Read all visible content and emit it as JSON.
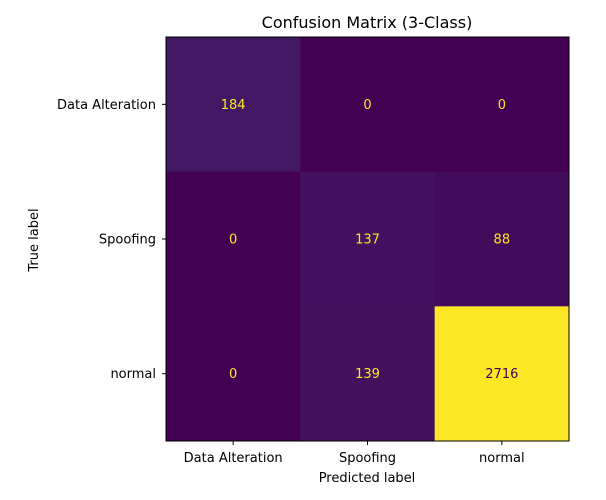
{
  "chart_data": {
    "type": "heatmap",
    "title": "Confusion Matrix (3-Class)",
    "xlabel": "Predicted label",
    "ylabel": "True label",
    "x_categories": [
      "Data Alteration",
      "Spoofing",
      "normal"
    ],
    "y_categories": [
      "Data Alteration",
      "Spoofing",
      "normal"
    ],
    "matrix": [
      [
        184,
        0,
        0
      ],
      [
        0,
        137,
        88
      ],
      [
        0,
        139,
        2716
      ]
    ],
    "colormap": "viridis",
    "vmin": 0,
    "vmax": 2716,
    "colorbar": false,
    "grid": false,
    "text_color_light": "#fde725",
    "text_color_dark": "#440154"
  }
}
